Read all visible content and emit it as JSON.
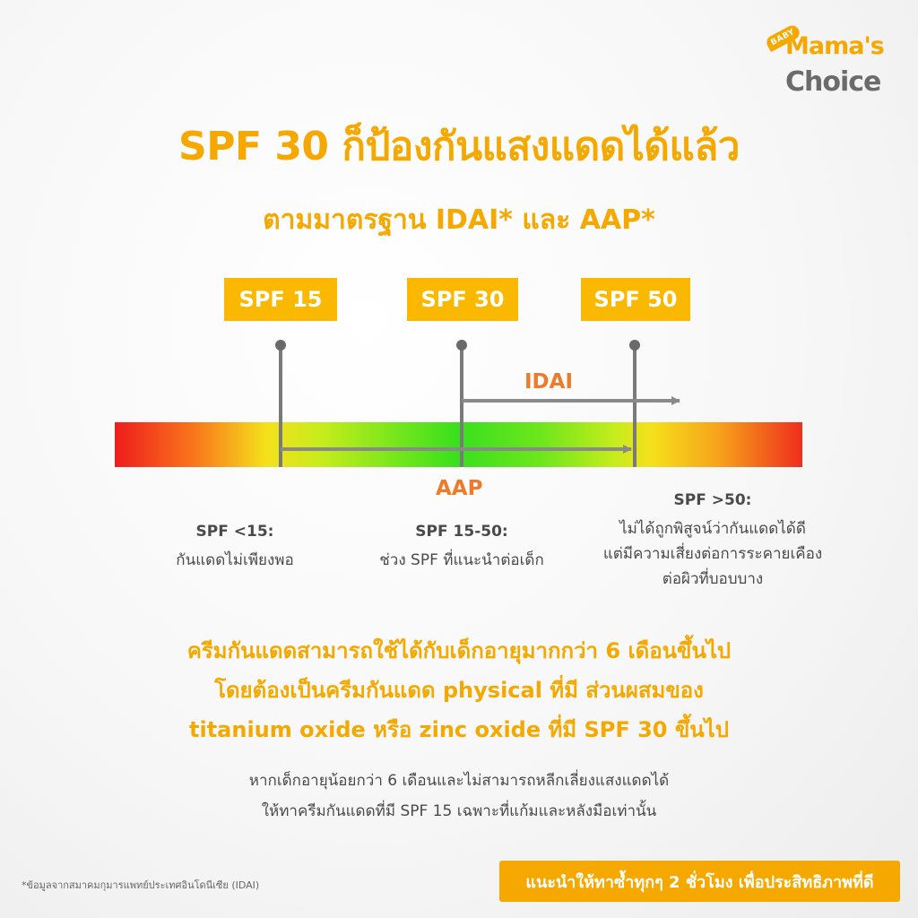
{
  "brand": {
    "baby": "BABY",
    "line1": "Mama's",
    "line2": "Choice",
    "primary_color": "#f5a800",
    "secondary_color": "#6b6b6b"
  },
  "title": "SPF 30  ก็ป้องกันแสงแดดได้แล้ว",
  "subtitle": "ตามมาตรฐาน IDAI* และ AAP*",
  "scale": {
    "markers": [
      {
        "label": "SPF 15",
        "spf": 15
      },
      {
        "label": "SPF 30",
        "spf": 30
      },
      {
        "label": "SPF 50",
        "spf": 50
      }
    ],
    "idai_label": "IDAI",
    "aap_label": "AAP",
    "idai_range": {
      "from_spf": 30,
      "to_spf": "above 50"
    },
    "aap_range": {
      "from_spf": 15,
      "to_spf": 50
    },
    "bar_colors": [
      "#ef1c1c",
      "#f4e11b",
      "#38e01c",
      "#f6e01b",
      "#ee2e1c"
    ],
    "label_color": "#ee7a2c"
  },
  "descriptions": [
    {
      "heading": "SPF <15:",
      "lines": [
        "กันแดดไม่เพียงพอ"
      ]
    },
    {
      "heading": "SPF 15-50:",
      "lines": [
        "ช่วง SPF ที่แนะนำต่อเด็ก"
      ]
    },
    {
      "heading": "SPF >50:",
      "lines": [
        "ไม่ได้ถูกพิสูจน์ว่ากันแดดได้ดี",
        "แต่มีความเสี่ยงต่อการระคายเคือง",
        "ต่อผิวที่บอบบาง"
      ]
    }
  ],
  "highlight": [
    "ครีมกันแดดสามารถใช้ได้กับเด็กอายุมากกว่า 6 เดือนขึ้นไป",
    "โดยต้องเป็นครีมกันแดด physical ที่มี ส่วนผสมของ",
    "titanium oxide หรือ zinc oxide ที่มี SPF 30 ขึ้นไป"
  ],
  "note": [
    "หากเด็กอายุน้อยกว่า 6 เดือนและไม่สามารถหลีกเลี่ยงแสงแดดได้",
    "ให้ทาครีมกันแดดที่มี SPF 15 เฉพาะที่แก้มและหลังมือเท่านั้น"
  ],
  "footnote": "*ข้อมูลจากสมาคมกุมารแพทย์ประเทศอินโดนีเซีย (IDAI)",
  "cta": "แนะนำให้ทาซ้ำทุกๆ 2 ชั่วโมง เพื่อประสิทธิภาพที่ดี"
}
